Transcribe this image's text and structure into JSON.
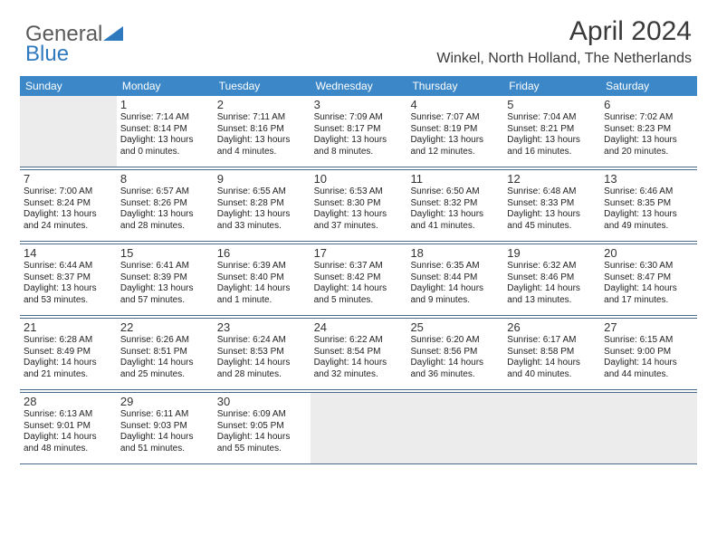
{
  "logo": {
    "word1": "General",
    "word2": "Blue",
    "accent": "#2f7abf",
    "gray": "#5a5a5a"
  },
  "header": {
    "title": "April 2024",
    "location": "Winkel, North Holland, The Netherlands"
  },
  "colors": {
    "header_bg": "#3b87c8",
    "header_text": "#ffffff",
    "rule": "#4a6a8a",
    "shaded": "#ececec",
    "body_text": "#222222"
  },
  "day_names": [
    "Sunday",
    "Monday",
    "Tuesday",
    "Wednesday",
    "Thursday",
    "Friday",
    "Saturday"
  ],
  "weeks": [
    [
      {
        "day": "",
        "shaded": true
      },
      {
        "day": "1",
        "sunrise": "Sunrise: 7:14 AM",
        "sunset": "Sunset: 8:14 PM",
        "daylight1": "Daylight: 13 hours",
        "daylight2": "and 0 minutes."
      },
      {
        "day": "2",
        "sunrise": "Sunrise: 7:11 AM",
        "sunset": "Sunset: 8:16 PM",
        "daylight1": "Daylight: 13 hours",
        "daylight2": "and 4 minutes."
      },
      {
        "day": "3",
        "sunrise": "Sunrise: 7:09 AM",
        "sunset": "Sunset: 8:17 PM",
        "daylight1": "Daylight: 13 hours",
        "daylight2": "and 8 minutes."
      },
      {
        "day": "4",
        "sunrise": "Sunrise: 7:07 AM",
        "sunset": "Sunset: 8:19 PM",
        "daylight1": "Daylight: 13 hours",
        "daylight2": "and 12 minutes."
      },
      {
        "day": "5",
        "sunrise": "Sunrise: 7:04 AM",
        "sunset": "Sunset: 8:21 PM",
        "daylight1": "Daylight: 13 hours",
        "daylight2": "and 16 minutes."
      },
      {
        "day": "6",
        "sunrise": "Sunrise: 7:02 AM",
        "sunset": "Sunset: 8:23 PM",
        "daylight1": "Daylight: 13 hours",
        "daylight2": "and 20 minutes."
      }
    ],
    [
      {
        "day": "7",
        "sunrise": "Sunrise: 7:00 AM",
        "sunset": "Sunset: 8:24 PM",
        "daylight1": "Daylight: 13 hours",
        "daylight2": "and 24 minutes."
      },
      {
        "day": "8",
        "sunrise": "Sunrise: 6:57 AM",
        "sunset": "Sunset: 8:26 PM",
        "daylight1": "Daylight: 13 hours",
        "daylight2": "and 28 minutes."
      },
      {
        "day": "9",
        "sunrise": "Sunrise: 6:55 AM",
        "sunset": "Sunset: 8:28 PM",
        "daylight1": "Daylight: 13 hours",
        "daylight2": "and 33 minutes."
      },
      {
        "day": "10",
        "sunrise": "Sunrise: 6:53 AM",
        "sunset": "Sunset: 8:30 PM",
        "daylight1": "Daylight: 13 hours",
        "daylight2": "and 37 minutes."
      },
      {
        "day": "11",
        "sunrise": "Sunrise: 6:50 AM",
        "sunset": "Sunset: 8:32 PM",
        "daylight1": "Daylight: 13 hours",
        "daylight2": "and 41 minutes."
      },
      {
        "day": "12",
        "sunrise": "Sunrise: 6:48 AM",
        "sunset": "Sunset: 8:33 PM",
        "daylight1": "Daylight: 13 hours",
        "daylight2": "and 45 minutes."
      },
      {
        "day": "13",
        "sunrise": "Sunrise: 6:46 AM",
        "sunset": "Sunset: 8:35 PM",
        "daylight1": "Daylight: 13 hours",
        "daylight2": "and 49 minutes."
      }
    ],
    [
      {
        "day": "14",
        "sunrise": "Sunrise: 6:44 AM",
        "sunset": "Sunset: 8:37 PM",
        "daylight1": "Daylight: 13 hours",
        "daylight2": "and 53 minutes."
      },
      {
        "day": "15",
        "sunrise": "Sunrise: 6:41 AM",
        "sunset": "Sunset: 8:39 PM",
        "daylight1": "Daylight: 13 hours",
        "daylight2": "and 57 minutes."
      },
      {
        "day": "16",
        "sunrise": "Sunrise: 6:39 AM",
        "sunset": "Sunset: 8:40 PM",
        "daylight1": "Daylight: 14 hours",
        "daylight2": "and 1 minute."
      },
      {
        "day": "17",
        "sunrise": "Sunrise: 6:37 AM",
        "sunset": "Sunset: 8:42 PM",
        "daylight1": "Daylight: 14 hours",
        "daylight2": "and 5 minutes."
      },
      {
        "day": "18",
        "sunrise": "Sunrise: 6:35 AM",
        "sunset": "Sunset: 8:44 PM",
        "daylight1": "Daylight: 14 hours",
        "daylight2": "and 9 minutes."
      },
      {
        "day": "19",
        "sunrise": "Sunrise: 6:32 AM",
        "sunset": "Sunset: 8:46 PM",
        "daylight1": "Daylight: 14 hours",
        "daylight2": "and 13 minutes."
      },
      {
        "day": "20",
        "sunrise": "Sunrise: 6:30 AM",
        "sunset": "Sunset: 8:47 PM",
        "daylight1": "Daylight: 14 hours",
        "daylight2": "and 17 minutes."
      }
    ],
    [
      {
        "day": "21",
        "sunrise": "Sunrise: 6:28 AM",
        "sunset": "Sunset: 8:49 PM",
        "daylight1": "Daylight: 14 hours",
        "daylight2": "and 21 minutes."
      },
      {
        "day": "22",
        "sunrise": "Sunrise: 6:26 AM",
        "sunset": "Sunset: 8:51 PM",
        "daylight1": "Daylight: 14 hours",
        "daylight2": "and 25 minutes."
      },
      {
        "day": "23",
        "sunrise": "Sunrise: 6:24 AM",
        "sunset": "Sunset: 8:53 PM",
        "daylight1": "Daylight: 14 hours",
        "daylight2": "and 28 minutes."
      },
      {
        "day": "24",
        "sunrise": "Sunrise: 6:22 AM",
        "sunset": "Sunset: 8:54 PM",
        "daylight1": "Daylight: 14 hours",
        "daylight2": "and 32 minutes."
      },
      {
        "day": "25",
        "sunrise": "Sunrise: 6:20 AM",
        "sunset": "Sunset: 8:56 PM",
        "daylight1": "Daylight: 14 hours",
        "daylight2": "and 36 minutes."
      },
      {
        "day": "26",
        "sunrise": "Sunrise: 6:17 AM",
        "sunset": "Sunset: 8:58 PM",
        "daylight1": "Daylight: 14 hours",
        "daylight2": "and 40 minutes."
      },
      {
        "day": "27",
        "sunrise": "Sunrise: 6:15 AM",
        "sunset": "Sunset: 9:00 PM",
        "daylight1": "Daylight: 14 hours",
        "daylight2": "and 44 minutes."
      }
    ],
    [
      {
        "day": "28",
        "sunrise": "Sunrise: 6:13 AM",
        "sunset": "Sunset: 9:01 PM",
        "daylight1": "Daylight: 14 hours",
        "daylight2": "and 48 minutes."
      },
      {
        "day": "29",
        "sunrise": "Sunrise: 6:11 AM",
        "sunset": "Sunset: 9:03 PM",
        "daylight1": "Daylight: 14 hours",
        "daylight2": "and 51 minutes."
      },
      {
        "day": "30",
        "sunrise": "Sunrise: 6:09 AM",
        "sunset": "Sunset: 9:05 PM",
        "daylight1": "Daylight: 14 hours",
        "daylight2": "and 55 minutes."
      },
      {
        "day": "",
        "shaded": true
      },
      {
        "day": "",
        "shaded": true
      },
      {
        "day": "",
        "shaded": true
      },
      {
        "day": "",
        "shaded": true
      }
    ]
  ]
}
